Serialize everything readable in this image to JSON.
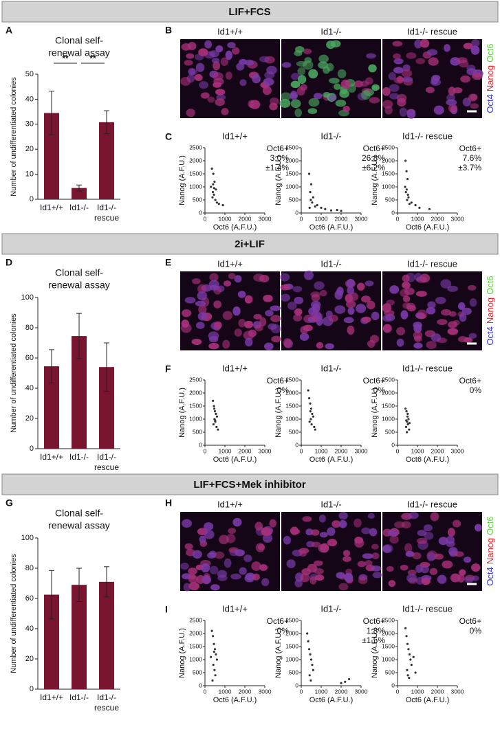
{
  "columns": [
    "Id1+/+",
    "Id1-/-",
    "Id1-/- rescue"
  ],
  "channels": [
    {
      "name": "Oct4",
      "color": "#3a3af0"
    },
    {
      "name": "Nanog",
      "color": "#e8202a"
    },
    {
      "name": "Oct6",
      "color": "#5bd83a"
    }
  ],
  "sections": [
    {
      "title": "LIF+FCS",
      "letters": [
        "A",
        "B",
        "C"
      ]
    },
    {
      "title": "2i+LIF",
      "letters": [
        "D",
        "E",
        "F"
      ]
    },
    {
      "title": "LIF+FCS+Mek inhibitor",
      "letters": [
        "G",
        "H",
        "I"
      ]
    }
  ],
  "chart_data": [
    {
      "type": "bar",
      "title": [
        "Clonal self-",
        "renewal assay"
      ],
      "ylabel": "Number of undifferentiated colonies",
      "categories": [
        [
          "Id1+/+"
        ],
        [
          "Id1-/-"
        ],
        [
          "Id1-/-",
          "rescue"
        ]
      ],
      "values": [
        34.5,
        4.5,
        30.8
      ],
      "errors": [
        8.7,
        1.2,
        4.6
      ],
      "color": "#7a1530",
      "ylim": [
        0,
        50
      ],
      "yticks": [
        0,
        10,
        20,
        30,
        40,
        50
      ],
      "significance": [
        "**",
        "**"
      ]
    },
    {
      "type": "scatter",
      "title": "Id1+/+",
      "xlabel": "Oct6 (A.F.U.)",
      "ylabel": "Nanog (A.F.U.)",
      "annotation": [
        "Oct6+",
        "3.0%",
        "±1.4%"
      ],
      "x": [
        350,
        420,
        480,
        300,
        550,
        400,
        450,
        380,
        520,
        600,
        700,
        900,
        410,
        460
      ],
      "y": [
        1700,
        1500,
        1200,
        1000,
        900,
        800,
        700,
        600,
        500,
        400,
        350,
        300,
        1100,
        950
      ],
      "xlim": [
        0,
        3000
      ],
      "xticks": [
        0,
        1000,
        2000,
        3000
      ],
      "ylim": [
        0,
        2500
      ],
      "yticks": [
        0,
        500,
        1000,
        1500,
        2000,
        2500
      ],
      "color": "#333333"
    },
    {
      "type": "scatter",
      "title": "Id1-/-",
      "xlabel": "Oct6 (A.F.U.)",
      "ylabel": "Nanog (A.F.U.)",
      "annotation": [
        "Oct6+",
        "26.8%",
        "±6.2%"
      ],
      "x": [
        400,
        500,
        450,
        600,
        800,
        1000,
        1200,
        1500,
        1800,
        2000,
        550,
        700,
        480,
        420
      ],
      "y": [
        1500,
        1100,
        800,
        600,
        300,
        200,
        150,
        100,
        120,
        80,
        400,
        250,
        500,
        200
      ],
      "xlim": [
        0,
        3000
      ],
      "xticks": [
        0,
        1000,
        2000,
        3000
      ],
      "ylim": [
        0,
        2500
      ],
      "yticks": [
        0,
        500,
        1000,
        1500,
        2000,
        2500
      ],
      "color": "#333333"
    },
    {
      "type": "scatter",
      "title": "Id1-/- rescue",
      "xlabel": "Oct6 (A.F.U.)",
      "ylabel": "Nanog (A.F.U.)",
      "annotation": [
        "Oct6+",
        "7.6%",
        "±3.7%"
      ],
      "x": [
        400,
        450,
        500,
        380,
        420,
        550,
        700,
        900,
        1100,
        1600,
        480,
        460,
        600,
        520
      ],
      "y": [
        2000,
        1600,
        1300,
        1000,
        800,
        600,
        400,
        300,
        200,
        150,
        500,
        900,
        350,
        700
      ],
      "xlim": [
        0,
        3000
      ],
      "xticks": [
        0,
        1000,
        2000,
        3000
      ],
      "ylim": [
        0,
        2500
      ],
      "yticks": [
        0,
        500,
        1000,
        1500,
        2000,
        2500
      ],
      "color": "#333333"
    },
    {
      "type": "bar",
      "title": [
        "Clonal self-",
        "renewal assay"
      ],
      "ylabel": "Number of undifferentiated colonies",
      "categories": [
        [
          "Id1+/+"
        ],
        [
          "Id1-/-"
        ],
        [
          "Id1-/-",
          "rescue"
        ]
      ],
      "values": [
        54.5,
        74.5,
        54
      ],
      "errors": [
        11,
        15,
        16
      ],
      "color": "#7a1530",
      "ylim": [
        0,
        100
      ],
      "yticks": [
        0,
        20,
        40,
        60,
        80,
        100
      ]
    },
    {
      "type": "scatter",
      "title": "Id1+/+",
      "xlabel": "Oct6 (A.F.U.)",
      "ylabel": "Nanog (A.F.U.)",
      "annotation": [
        "Oct6+",
        "0%"
      ],
      "x": [
        400,
        450,
        500,
        550,
        600,
        480,
        520,
        430,
        580,
        650,
        470,
        510
      ],
      "y": [
        1700,
        1500,
        1300,
        1200,
        1100,
        1000,
        900,
        800,
        700,
        600,
        1400,
        950
      ],
      "xlim": [
        0,
        3000
      ],
      "xticks": [
        0,
        1000,
        2000,
        3000
      ],
      "ylim": [
        0,
        2500
      ],
      "yticks": [
        0,
        500,
        1000,
        1500,
        2000,
        2500
      ],
      "color": "#333333"
    },
    {
      "type": "scatter",
      "title": "Id1-/-",
      "xlabel": "Oct6 (A.F.U.)",
      "ylabel": "Nanog (A.F.U.)",
      "annotation": [
        "Oct6+",
        "0%"
      ],
      "x": [
        350,
        400,
        450,
        500,
        550,
        600,
        480,
        420,
        520,
        650,
        460,
        700
      ],
      "y": [
        2100,
        1800,
        1600,
        1400,
        1200,
        1100,
        1000,
        900,
        800,
        700,
        1300,
        600
      ],
      "xlim": [
        0,
        3000
      ],
      "xticks": [
        0,
        1000,
        2000,
        3000
      ],
      "ylim": [
        0,
        2500
      ],
      "yticks": [
        0,
        500,
        1000,
        1500,
        2000,
        2500
      ],
      "color": "#333333"
    },
    {
      "type": "scatter",
      "title": "Id1-/- rescue",
      "xlabel": "Oct6 (A.F.U.)",
      "ylabel": "Nanog (A.F.U.)",
      "annotation": [
        "Oct6+",
        "0%"
      ],
      "x": [
        400,
        450,
        500,
        550,
        480,
        520,
        430,
        580,
        470,
        510,
        600,
        440
      ],
      "y": [
        1400,
        1300,
        1100,
        1000,
        900,
        800,
        700,
        600,
        500,
        1200,
        850,
        950
      ],
      "xlim": [
        0,
        3000
      ],
      "xticks": [
        0,
        1000,
        2000,
        3000
      ],
      "ylim": [
        0,
        2500
      ],
      "yticks": [
        0,
        500,
        1000,
        1500,
        2000,
        2500
      ],
      "color": "#333333"
    },
    {
      "type": "bar",
      "title": [
        "Clonal self-",
        "renewal assay"
      ],
      "ylabel": "Number of undifferentiated colonies",
      "categories": [
        [
          "Id1+/+"
        ],
        [
          "Id1-/-"
        ],
        [
          "Id1-/-",
          "rescue"
        ]
      ],
      "values": [
        62.5,
        69,
        71
      ],
      "errors": [
        16,
        11,
        10
      ],
      "color": "#7a1530",
      "ylim": [
        0,
        100
      ],
      "yticks": [
        0,
        20,
        40,
        60,
        80,
        100
      ]
    },
    {
      "type": "scatter",
      "title": "Id1+/+",
      "xlabel": "Oct6 (A.F.U.)",
      "ylabel": "Nanog (A.F.U.)",
      "annotation": [
        "Oct6+",
        "0%"
      ],
      "x": [
        350,
        400,
        450,
        500,
        550,
        600,
        420,
        480,
        520,
        380,
        460,
        300
      ],
      "y": [
        2100,
        1900,
        1600,
        1400,
        1200,
        1000,
        800,
        600,
        400,
        200,
        1300,
        1100
      ],
      "xlim": [
        0,
        3000
      ],
      "xticks": [
        0,
        1000,
        2000,
        3000
      ],
      "ylim": [
        0,
        2500
      ],
      "yticks": [
        0,
        500,
        1000,
        1500,
        2000,
        2500
      ],
      "color": "#333333"
    },
    {
      "type": "scatter",
      "title": "Id1-/-",
      "xlabel": "Oct6 (A.F.U.)",
      "ylabel": "Nanog (A.F.U.)",
      "annotation": [
        "Oct6+",
        "1.8%",
        "±1.5%"
      ],
      "x": [
        300,
        350,
        400,
        450,
        500,
        550,
        600,
        420,
        480,
        2000,
        2200,
        2400
      ],
      "y": [
        2000,
        1700,
        1400,
        1200,
        1000,
        800,
        600,
        400,
        200,
        100,
        150,
        250
      ],
      "xlim": [
        0,
        3000
      ],
      "xticks": [
        0,
        1000,
        2000,
        3000
      ],
      "ylim": [
        0,
        2500
      ],
      "yticks": [
        0,
        500,
        1000,
        1500,
        2000,
        2500
      ],
      "color": "#333333"
    },
    {
      "type": "scatter",
      "title": "Id1-/- rescue",
      "xlabel": "Oct6 (A.F.U.)",
      "ylabel": "Nanog (A.F.U.)",
      "annotation": [
        "Oct6+",
        "0%"
      ],
      "x": [
        400,
        450,
        500,
        550,
        600,
        650,
        700,
        480,
        520,
        580,
        800,
        900
      ],
      "y": [
        2200,
        1900,
        1600,
        1400,
        1200,
        1000,
        800,
        600,
        400,
        300,
        1100,
        500
      ],
      "xlim": [
        0,
        3000
      ],
      "xticks": [
        0,
        1000,
        2000,
        3000
      ],
      "ylim": [
        0,
        2500
      ],
      "yticks": [
        0,
        500,
        1000,
        1500,
        2000,
        2500
      ],
      "color": "#333333"
    }
  ]
}
